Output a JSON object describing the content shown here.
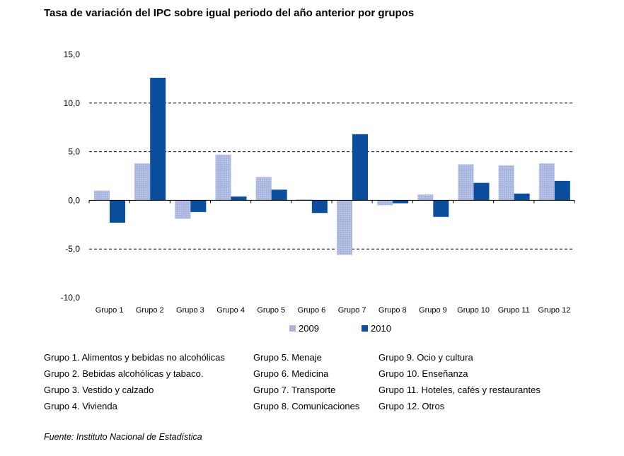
{
  "title": "Tasa de variación del IPC sobre igual periodo del año anterior por grupos",
  "chart_data": {
    "type": "bar",
    "title": "Tasa de variación del IPC sobre igual periodo del año anterior por grupos",
    "categories": [
      "Grupo 1",
      "Grupo 2",
      "Grupo 3",
      "Grupo 4",
      "Grupo 5",
      "Grupo 6",
      "Grupo 7",
      "Grupo 8",
      "Grupo 9",
      "Grupo 10",
      "Grupo 11",
      "Grupo 12"
    ],
    "series": [
      {
        "name": "2009",
        "color": "#a9b7e0",
        "values": [
          1.0,
          3.8,
          -1.9,
          4.7,
          2.4,
          0.1,
          -5.6,
          -0.5,
          0.6,
          3.7,
          3.6,
          3.8
        ]
      },
      {
        "name": "2010",
        "color": "#0b4f9c",
        "values": [
          -2.3,
          12.6,
          -1.2,
          0.4,
          1.1,
          -1.3,
          6.8,
          -0.3,
          -1.7,
          1.8,
          0.7,
          2.0
        ]
      }
    ],
    "yticks": [
      "15,0",
      "10,0",
      "5,0",
      "0,0",
      "-5,0",
      "-10,0"
    ],
    "ytick_values": [
      15,
      10,
      5,
      0,
      -5,
      -10
    ],
    "ylim": [
      -10,
      15
    ],
    "grid": "dashed at 5 and 10 and -5",
    "legend_position": "bottom"
  },
  "notes": [
    [
      "Grupo 1. Alimentos y bebidas no alcohólicas",
      "Grupo 2. Bebidas alcohólicas y  tabaco.",
      "Grupo 3. Vestido y calzado",
      "Grupo 4. Vivienda"
    ],
    [
      "Grupo 5. Menaje",
      "Grupo 6. Medicina",
      "Grupo 7. Transporte",
      "Grupo 8. Comunicaciones"
    ],
    [
      "Grupo 9. Ocio y cultura",
      "Grupo 10. Enseñanza",
      "Grupo 11. Hoteles, cafés y restaurantes",
      "Grupo 12. Otros"
    ]
  ],
  "source": "Fuente: Instituto Nacional de Estadística"
}
